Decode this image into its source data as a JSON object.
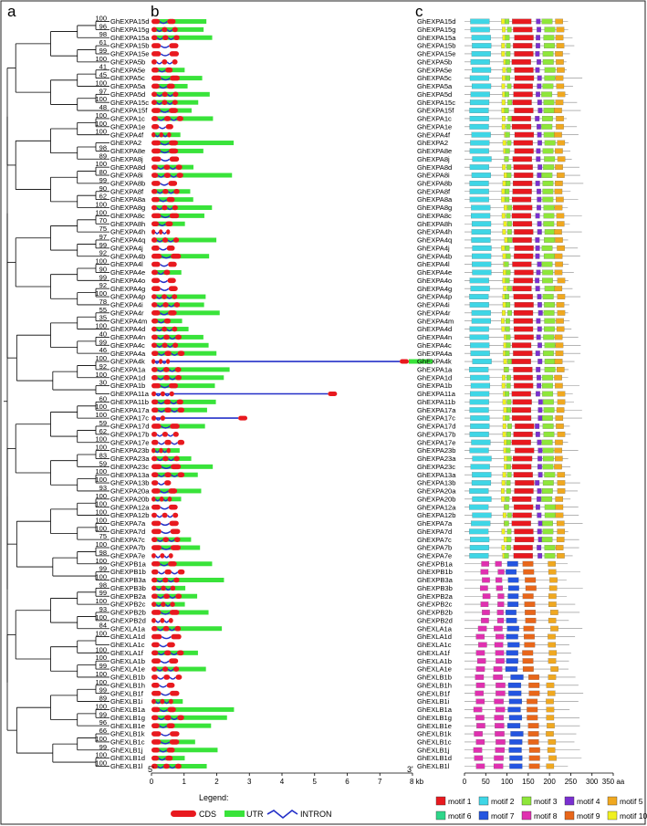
{
  "panels": {
    "a": "a",
    "b": "b",
    "c": "c"
  },
  "genes": [
    "GhEXPA15d",
    "GhEXPA15g",
    "GhEXPA15a",
    "GhEXPA15b",
    "GhEXPA15e",
    "GhEXPA5b",
    "GhEXPA5e",
    "GhEXPA5c",
    "GhEXPA5a",
    "GhEXPA5d",
    "GhEXPA15c",
    "GhEXPA15f",
    "GhEXPA1c",
    "GhEXPA1e",
    "GhEXPA4f",
    "GhEXPA2",
    "GhEXPA8e",
    "GhEXPA8j",
    "GhEXPA8d",
    "GhEXPA8i",
    "GhEXPA8b",
    "GhEXPA8f",
    "GhEXPA8a",
    "GhEXPA8g",
    "GhEXPA8c",
    "GhEXPA8h",
    "GhEXPA4h",
    "GhEXPA4q",
    "GhEXPA4j",
    "GhEXPA4b",
    "GhEXPA4l",
    "GhEXPA4e",
    "GhEXPA4o",
    "GhEXPA4g",
    "GhEXPA4p",
    "GhEXPA4i",
    "GhEXPA4r",
    "GhEXPA4m",
    "GhEXPA4d",
    "GhEXPA4n",
    "GhEXPA4c",
    "GhEXPA4a",
    "GhEXPA4k",
    "GhEXPA1a",
    "GhEXPA1d",
    "GhEXPA1b",
    "GhEXPA11a",
    "GhEXPA11b",
    "GhEXPA17a",
    "GhEXPA17c",
    "GhEXPA17d",
    "GhEXPA17b",
    "GhEXPA17e",
    "GhEXPA23b",
    "GhEXPA23a",
    "GhEXPA23c",
    "GhEXPA13a",
    "GhEXPA13b",
    "GhEXPA20a",
    "GhEXPA20b",
    "GhEXPA12a",
    "GhEXPA12b",
    "GhEXPA7a",
    "GhEXPA7d",
    "GhEXPA7c",
    "GhEXPA7b",
    "GhEXPA7e",
    "GhEXPB1a",
    "GhEXPB1b",
    "GhEXPB3a",
    "GhEXPB3b",
    "GhEXPB2a",
    "GhEXPB2c",
    "GhEXPB2b",
    "GhEXPB2d",
    "GhEXLA1a",
    "GhEXLA1d",
    "GhEXLA1c",
    "GhEXLA1f",
    "GhEXLA1b",
    "GhEXLA1e",
    "GhEXLB1b",
    "GhEXLB1h",
    "GhEXLB1f",
    "GhEXLB1i",
    "GhEXLB1a",
    "GhEXLB1g",
    "GhEXLB1e",
    "GhEXLB1k",
    "GhEXLB1c",
    "GhEXLB1j",
    "GhEXLB1d",
    "GhEXLB1l"
  ],
  "bootstrap_values": [
    "100",
    "96",
    "98",
    "61",
    "99",
    "100",
    "41",
    "45",
    "100",
    "97",
    "100",
    "48",
    "100",
    "100",
    "100",
    "98",
    "89",
    "100",
    "80",
    "99",
    "90",
    "62",
    "100",
    "100",
    "70",
    "75",
    "97",
    "99",
    "92",
    "100",
    "90",
    "99",
    "92",
    "100",
    "78",
    "55",
    "35",
    "100",
    "40",
    "99",
    "46",
    "100",
    "92",
    "100",
    "30",
    "60",
    "100",
    "100",
    "59",
    "62",
    "100",
    "100",
    "83",
    "59",
    "100",
    "100",
    "93",
    "100",
    "100",
    "100",
    "100",
    "100",
    "75",
    "100",
    "98",
    "100",
    "99",
    "100",
    "98",
    "99",
    "100",
    "93",
    "100",
    "84",
    "100",
    "100",
    "100",
    "99",
    "100",
    "100",
    "99",
    "89",
    "100",
    "99",
    "96",
    "66",
    "100",
    "99",
    "100",
    "100"
  ],
  "gene_structure_axis": {
    "ticks": [
      "0",
      "1",
      "2",
      "3",
      "4",
      "5",
      "6",
      "7",
      "8 kb"
    ],
    "start_label": "5'",
    "end_label": "3'"
  },
  "gene_structure_legend": {
    "title": "Legend:",
    "items": [
      {
        "label": "CDS",
        "color": "#e8191f"
      },
      {
        "label": "UTR",
        "color": "#39e33a"
      },
      {
        "label": "INTRON",
        "color": "#2430c8"
      }
    ]
  },
  "motif_axis": {
    "ticks": [
      "0",
      "50",
      "100",
      "150",
      "200",
      "250",
      "300",
      "350 aa"
    ]
  },
  "motif_legend": [
    {
      "label": "motif 1",
      "color": "#e8191f"
    },
    {
      "label": "motif 2",
      "color": "#3fd6e6"
    },
    {
      "label": "motif 3",
      "color": "#8ee63a"
    },
    {
      "label": "motif 4",
      "color": "#7a2fd0"
    },
    {
      "label": "motif 5",
      "color": "#f0a820"
    },
    {
      "label": "motif 6",
      "color": "#2fd68a"
    },
    {
      "label": "motif 7",
      "color": "#2455e0"
    },
    {
      "label": "motif 8",
      "color": "#e030b0"
    },
    {
      "label": "motif 9",
      "color": "#e8661a"
    },
    {
      "label": "motif 10",
      "color": "#f0f020"
    }
  ]
}
